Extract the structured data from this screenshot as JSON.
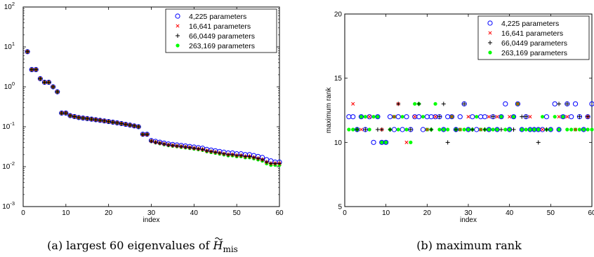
{
  "figure": {
    "caption_a_prefix": "(a) largest 60 eigenvalues of ",
    "caption_a_symbol": "H",
    "caption_a_subscript": "mis",
    "caption_b": "(b) maximum rank"
  },
  "chart_data": [
    {
      "id": "a",
      "type": "scatter",
      "yscale": "log",
      "title": "",
      "xlabel": "index",
      "ylabel": "",
      "xlim": [
        0,
        60
      ],
      "ylim": [
        0.001,
        100
      ],
      "xticks": [
        "0",
        "10",
        "20",
        "30",
        "40",
        "50",
        "60"
      ],
      "yticks": [
        "10^-3",
        "10^-2",
        "10^-1",
        "10^0",
        "10^1",
        "10^2"
      ],
      "legend": {
        "position": "top-right",
        "entries": [
          "4,225 parameters",
          "16,641 parameters",
          "66,0449 parameters",
          "263,169 parameters"
        ]
      },
      "series": [
        {
          "name": "4,225 parameters",
          "marker": "circle",
          "color": "#0000ff",
          "x": [
            1,
            2,
            3,
            4,
            5,
            6,
            7,
            8,
            9,
            10,
            11,
            12,
            13,
            14,
            15,
            16,
            17,
            18,
            19,
            20,
            21,
            22,
            23,
            24,
            25,
            26,
            27,
            28,
            29,
            30,
            31,
            32,
            33,
            34,
            35,
            36,
            37,
            38,
            39,
            40,
            41,
            42,
            43,
            44,
            45,
            46,
            47,
            48,
            49,
            50,
            51,
            52,
            53,
            54,
            55,
            56,
            57,
            58,
            59,
            60
          ],
          "y": [
            7.6,
            2.7,
            2.7,
            1.6,
            1.3,
            1.3,
            1.0,
            0.75,
            0.22,
            0.22,
            0.19,
            0.18,
            0.17,
            0.165,
            0.16,
            0.155,
            0.15,
            0.145,
            0.14,
            0.135,
            0.13,
            0.125,
            0.12,
            0.115,
            0.11,
            0.105,
            0.1,
            0.065,
            0.065,
            0.045,
            0.043,
            0.041,
            0.039,
            0.037,
            0.036,
            0.035,
            0.034,
            0.033,
            0.032,
            0.031,
            0.03,
            0.029,
            0.027,
            0.026,
            0.025,
            0.024,
            0.023,
            0.022,
            0.022,
            0.021,
            0.021,
            0.02,
            0.02,
            0.019,
            0.018,
            0.017,
            0.015,
            0.014,
            0.013,
            0.013
          ]
        },
        {
          "name": "16,641 parameters",
          "marker": "x",
          "color": "#ff0000",
          "x": [
            1,
            2,
            3,
            4,
            5,
            6,
            7,
            8,
            9,
            10,
            11,
            12,
            13,
            14,
            15,
            16,
            17,
            18,
            19,
            20,
            21,
            22,
            23,
            24,
            25,
            26,
            27,
            28,
            29,
            30,
            31,
            32,
            33,
            34,
            35,
            36,
            37,
            38,
            39,
            40,
            41,
            42,
            43,
            44,
            45,
            46,
            47,
            48,
            49,
            50,
            51,
            52,
            53,
            54,
            55,
            56,
            57,
            58,
            59,
            60
          ],
          "y": [
            7.6,
            2.7,
            2.7,
            1.6,
            1.3,
            1.3,
            1.0,
            0.75,
            0.22,
            0.22,
            0.19,
            0.18,
            0.17,
            0.165,
            0.16,
            0.155,
            0.15,
            0.145,
            0.14,
            0.135,
            0.13,
            0.125,
            0.12,
            0.115,
            0.11,
            0.105,
            0.1,
            0.064,
            0.064,
            0.044,
            0.041,
            0.039,
            0.037,
            0.035,
            0.034,
            0.033,
            0.032,
            0.031,
            0.03,
            0.029,
            0.028,
            0.027,
            0.025,
            0.024,
            0.023,
            0.022,
            0.021,
            0.02,
            0.02,
            0.019,
            0.019,
            0.018,
            0.018,
            0.017,
            0.016,
            0.015,
            0.013,
            0.012,
            0.012,
            0.012
          ]
        },
        {
          "name": "66,0449 parameters",
          "marker": "plus",
          "color": "#000000",
          "x": [
            1,
            2,
            3,
            4,
            5,
            6,
            7,
            8,
            9,
            10,
            11,
            12,
            13,
            14,
            15,
            16,
            17,
            18,
            19,
            20,
            21,
            22,
            23,
            24,
            25,
            26,
            27,
            28,
            29,
            30,
            31,
            32,
            33,
            34,
            35,
            36,
            37,
            38,
            39,
            40,
            41,
            42,
            43,
            44,
            45,
            46,
            47,
            48,
            49,
            50,
            51,
            52,
            53,
            54,
            55,
            56,
            57,
            58,
            59,
            60
          ],
          "y": [
            7.6,
            2.7,
            2.7,
            1.6,
            1.3,
            1.3,
            1.0,
            0.75,
            0.22,
            0.22,
            0.19,
            0.18,
            0.17,
            0.165,
            0.16,
            0.155,
            0.15,
            0.145,
            0.14,
            0.135,
            0.13,
            0.125,
            0.12,
            0.115,
            0.11,
            0.105,
            0.1,
            0.064,
            0.064,
            0.044,
            0.041,
            0.039,
            0.037,
            0.035,
            0.034,
            0.033,
            0.032,
            0.031,
            0.03,
            0.029,
            0.028,
            0.027,
            0.025,
            0.024,
            0.023,
            0.022,
            0.021,
            0.02,
            0.02,
            0.019,
            0.019,
            0.018,
            0.018,
            0.017,
            0.016,
            0.015,
            0.013,
            0.012,
            0.012,
            0.012
          ]
        },
        {
          "name": "263,169 parameters",
          "marker": "dot",
          "color": "#00ff00",
          "x": [
            1,
            2,
            3,
            4,
            5,
            6,
            7,
            8,
            9,
            10,
            11,
            12,
            13,
            14,
            15,
            16,
            17,
            18,
            19,
            20,
            21,
            22,
            23,
            24,
            25,
            26,
            27,
            28,
            29,
            30,
            31,
            32,
            33,
            34,
            35,
            36,
            37,
            38,
            39,
            40,
            41,
            42,
            43,
            44,
            45,
            46,
            47,
            48,
            49,
            50,
            51,
            52,
            53,
            54,
            55,
            56,
            57,
            58,
            59,
            60
          ],
          "y": [
            7.6,
            2.7,
            2.7,
            1.6,
            1.3,
            1.3,
            1.0,
            0.75,
            0.22,
            0.22,
            0.19,
            0.18,
            0.17,
            0.165,
            0.16,
            0.155,
            0.15,
            0.145,
            0.14,
            0.135,
            0.13,
            0.125,
            0.12,
            0.115,
            0.11,
            0.105,
            0.1,
            0.064,
            0.064,
            0.043,
            0.04,
            0.038,
            0.036,
            0.034,
            0.033,
            0.032,
            0.031,
            0.03,
            0.029,
            0.028,
            0.027,
            0.026,
            0.024,
            0.023,
            0.022,
            0.021,
            0.02,
            0.019,
            0.019,
            0.018,
            0.018,
            0.017,
            0.017,
            0.016,
            0.015,
            0.014,
            0.012,
            0.011,
            0.011,
            0.011
          ]
        }
      ]
    },
    {
      "id": "b",
      "type": "scatter",
      "title": "",
      "xlabel": "index",
      "ylabel": "maximum rank",
      "xlim": [
        0,
        60
      ],
      "ylim": [
        5,
        20
      ],
      "xticks": [
        "0",
        "10",
        "20",
        "30",
        "40",
        "50",
        "60"
      ],
      "yticks": [
        "5",
        "10",
        "15",
        "20"
      ],
      "legend": {
        "position": "top-right",
        "entries": [
          "4,225 parameters",
          "16,641 parameters",
          "66,0449 parameters",
          "263,169 parameters"
        ]
      },
      "series": [
        {
          "name": "4,225 parameters",
          "marker": "circle",
          "color": "#0000ff",
          "x": [
            1,
            2,
            3,
            4,
            5,
            6,
            7,
            8,
            9,
            10,
            11,
            12,
            13,
            14,
            15,
            16,
            17,
            18,
            19,
            20,
            21,
            22,
            23,
            24,
            25,
            26,
            27,
            28,
            29,
            30,
            31,
            32,
            33,
            34,
            35,
            36,
            37,
            38,
            39,
            40,
            41,
            42,
            43,
            44,
            45,
            46,
            47,
            48,
            49,
            50,
            51,
            52,
            53,
            54,
            55,
            56,
            57,
            58,
            59,
            60
          ],
          "y": [
            12,
            12,
            11,
            12,
            11,
            12,
            10,
            12,
            10,
            10,
            12,
            11,
            12,
            11,
            12,
            11,
            12,
            12,
            11,
            12,
            12,
            12,
            12,
            11,
            12,
            12,
            11,
            12,
            13,
            11,
            12,
            11,
            12,
            12,
            11,
            12,
            11,
            12,
            13,
            11,
            12,
            13,
            11,
            12,
            11,
            11,
            11,
            11,
            12,
            11,
            13,
            11,
            12,
            13,
            12,
            13,
            12,
            11,
            12,
            13
          ]
        },
        {
          "name": "16,641 parameters",
          "marker": "x",
          "color": "#ff0000",
          "x": [
            2,
            4,
            6,
            9,
            12,
            13,
            15,
            17,
            20,
            22,
            26,
            28,
            30,
            33,
            35,
            37,
            40,
            42,
            45,
            48,
            52,
            54,
            56,
            59
          ],
          "y": [
            13,
            11,
            12,
            11,
            12,
            13,
            10,
            12,
            11,
            12,
            12,
            11,
            12,
            11,
            12,
            12,
            12,
            13,
            12,
            11,
            12,
            12,
            11,
            12
          ]
        },
        {
          "name": "66,0449 parameters",
          "marker": "plus",
          "color": "#000000",
          "x": [
            3,
            5,
            8,
            9,
            11,
            13,
            16,
            18,
            21,
            23,
            24,
            25,
            27,
            29,
            31,
            34,
            36,
            38,
            41,
            43,
            44,
            47,
            49,
            52,
            54,
            57,
            59
          ],
          "y": [
            11,
            11,
            11,
            11,
            11,
            13,
            11,
            13,
            11,
            12,
            13,
            10,
            11,
            13,
            11,
            11,
            12,
            11,
            11,
            12,
            12,
            10,
            11,
            13,
            13,
            12,
            12
          ]
        },
        {
          "name": "263,169 parameters",
          "marker": "dot",
          "color": "#00ff00",
          "x": [
            1,
            2,
            3,
            4,
            5,
            6,
            7,
            8,
            9,
            10,
            11,
            12,
            13,
            14,
            15,
            16,
            17,
            18,
            19,
            20,
            21,
            22,
            23,
            24,
            25,
            26,
            27,
            28,
            29,
            30,
            31,
            32,
            33,
            34,
            35,
            36,
            37,
            38,
            39,
            40,
            41,
            42,
            43,
            44,
            45,
            46,
            47,
            48,
            49,
            50,
            51,
            52,
            53,
            54,
            55,
            56,
            57,
            58,
            59,
            60
          ],
          "y": [
            11,
            11,
            11,
            12,
            12,
            11,
            12,
            12,
            10,
            10,
            11,
            12,
            11,
            12,
            11,
            10,
            13,
            13,
            12,
            11,
            11,
            13,
            11,
            11,
            11,
            12,
            11,
            11,
            11,
            11,
            11,
            12,
            11,
            11,
            11,
            11,
            11,
            12,
            11,
            11,
            12,
            13,
            11,
            11,
            11,
            11,
            11,
            12,
            11,
            11,
            12,
            11,
            12,
            11,
            11,
            11,
            11,
            11,
            11,
            11
          ]
        }
      ]
    }
  ]
}
